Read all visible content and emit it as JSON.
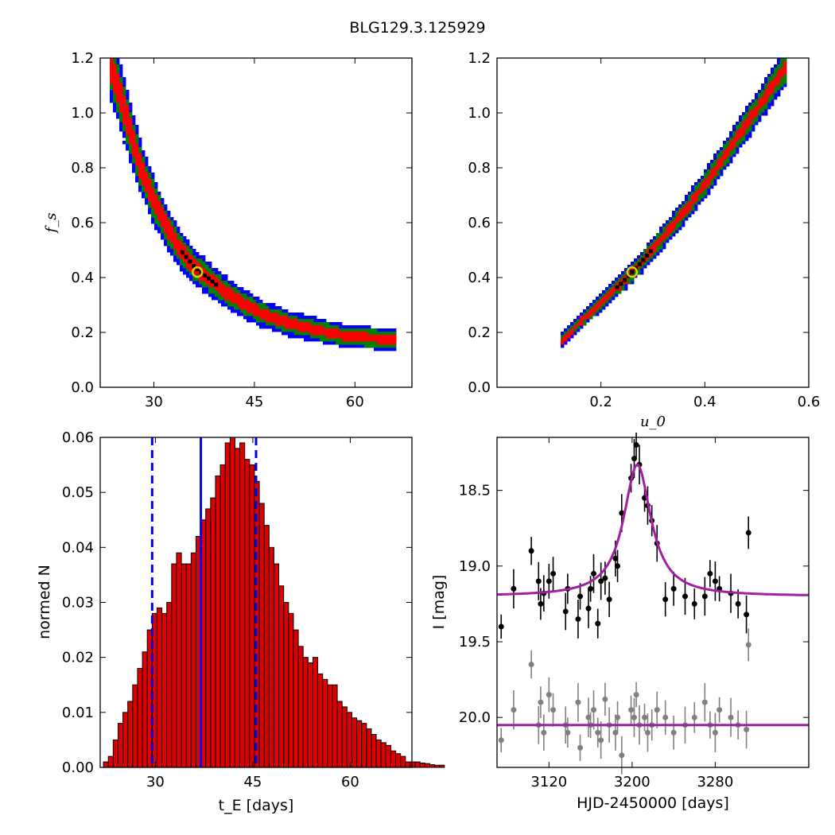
{
  "title": "BLG129.3.125929",
  "colors": {
    "outer": "#0000ff",
    "mid": "#008000",
    "inner": "#ff0000",
    "core": "#000000",
    "model": "#a020a0",
    "data_main": "#000000",
    "data_ref": "#808080",
    "best_marker": "#d4d400",
    "hist_fill": "#dd0000",
    "vline": "#0000ee"
  },
  "chart_data": [
    {
      "panel": "top-left",
      "type": "heatmap",
      "xlabel": "",
      "ylabel": "f_s",
      "xlim": [
        22,
        68.5
      ],
      "ylim": [
        0,
        1.2
      ],
      "xticks": [
        30,
        45,
        60
      ],
      "yticks": [
        "0.0",
        "0.2",
        "0.4",
        "0.6",
        "0.8",
        "1.0",
        "1.2"
      ],
      "description": "confidence region of f_s vs t_E (nested contours)",
      "ridge": [
        [
          23.5,
          1.18
        ],
        [
          25,
          1.06
        ],
        [
          26.5,
          0.93
        ],
        [
          28,
          0.8
        ],
        [
          30,
          0.68
        ],
        [
          32,
          0.58
        ],
        [
          34,
          0.5
        ],
        [
          36,
          0.44
        ],
        [
          38,
          0.4
        ],
        [
          40,
          0.36
        ],
        [
          43,
          0.31
        ],
        [
          46,
          0.27
        ],
        [
          50,
          0.235
        ],
        [
          54,
          0.21
        ],
        [
          58,
          0.19
        ],
        [
          62,
          0.18
        ],
        [
          66,
          0.175
        ]
      ],
      "best_fit": {
        "x": 36.5,
        "y": 0.42
      }
    },
    {
      "panel": "top-right",
      "type": "heatmap",
      "xlabel": "u_0",
      "ylabel": "",
      "xlim": [
        0.0,
        0.6
      ],
      "ylim": [
        0,
        1.2
      ],
      "xticks": [
        "0.2",
        "0.4",
        "0.6"
      ],
      "yticks": [
        "0.0",
        "0.2",
        "0.4",
        "0.6",
        "0.8",
        "1.0",
        "1.2"
      ],
      "description": "confidence region of f_s vs u_0 (nested contours)",
      "ridge": [
        [
          0.12,
          0.16
        ],
        [
          0.16,
          0.24
        ],
        [
          0.2,
          0.31
        ],
        [
          0.24,
          0.38
        ],
        [
          0.28,
          0.46
        ],
        [
          0.32,
          0.55
        ],
        [
          0.36,
          0.64
        ],
        [
          0.4,
          0.74
        ],
        [
          0.44,
          0.85
        ],
        [
          0.48,
          0.96
        ],
        [
          0.52,
          1.07
        ],
        [
          0.56,
          1.18
        ]
      ],
      "best_fit": {
        "x": 0.26,
        "y": 0.42
      }
    },
    {
      "panel": "bottom-left",
      "type": "bar",
      "xlabel": "t_E  [days]",
      "ylabel": "normed N",
      "xlim": [
        21.5,
        69.5
      ],
      "ylim": [
        0,
        0.06
      ],
      "xticks": [
        30,
        45,
        60
      ],
      "yticks": [
        "0.00",
        "0.01",
        "0.02",
        "0.03",
        "0.04",
        "0.05",
        "0.06"
      ],
      "bin_start": 22.0,
      "bin_width": 0.75,
      "values": [
        0.001,
        0.002,
        0.005,
        0.008,
        0.01,
        0.012,
        0.015,
        0.018,
        0.021,
        0.025,
        0.028,
        0.029,
        0.028,
        0.03,
        0.037,
        0.039,
        0.037,
        0.037,
        0.039,
        0.042,
        0.045,
        0.047,
        0.049,
        0.053,
        0.055,
        0.059,
        0.06,
        0.058,
        0.059,
        0.056,
        0.055,
        0.052,
        0.048,
        0.044,
        0.04,
        0.037,
        0.033,
        0.03,
        0.028,
        0.025,
        0.022,
        0.02,
        0.019,
        0.02,
        0.017,
        0.016,
        0.015,
        0.015,
        0.012,
        0.011,
        0.01,
        0.009,
        0.0085,
        0.008,
        0.007,
        0.006,
        0.005,
        0.0045,
        0.004,
        0.003,
        0.0025,
        0.002,
        0.001,
        0.001,
        0.001,
        0.0008,
        0.0007,
        0.0005,
        0.0004,
        0.0004
      ],
      "vlines": [
        {
          "x": 37.0,
          "style": "solid"
        },
        {
          "x": 29.5,
          "style": "dashed"
        },
        {
          "x": 45.5,
          "style": "dashed"
        }
      ]
    },
    {
      "panel": "bottom-right",
      "type": "scatter",
      "xlabel": "HJD-2450000 [days]",
      "ylabel": "I [mag]",
      "xlim": [
        3070,
        3370
      ],
      "ylim": [
        20.33,
        18.15
      ],
      "y_inverted": true,
      "xticks": [
        3120,
        3200,
        3280
      ],
      "yticks": [
        "18.5",
        "19.0",
        "19.5",
        "20.0"
      ],
      "model": {
        "t0": 3205,
        "baseline": 19.2,
        "peak": 18.33,
        "tau": 16
      },
      "reference_baseline": 20.05,
      "series": [
        {
          "color": "black",
          "x": [
            3074,
            3086,
            3103,
            3110,
            3112,
            3115,
            3120,
            3124,
            3136,
            3138,
            3148,
            3150,
            3158,
            3160,
            3163,
            3167,
            3170,
            3174,
            3178,
            3184,
            3186,
            3190,
            3199,
            3202,
            3204,
            3207,
            3212,
            3215,
            3219,
            3224,
            3232,
            3240,
            3251,
            3260,
            3270,
            3275,
            3280,
            3284,
            3295,
            3302,
            3310,
            3312
          ],
          "y": [
            19.4,
            19.15,
            18.9,
            19.1,
            19.25,
            19.18,
            19.1,
            19.05,
            19.3,
            19.15,
            19.35,
            19.2,
            19.28,
            19.15,
            19.05,
            19.38,
            19.1,
            19.08,
            19.22,
            18.95,
            19.0,
            18.65,
            18.42,
            18.29,
            18.2,
            18.33,
            18.55,
            18.6,
            18.7,
            18.85,
            19.22,
            19.15,
            19.2,
            19.25,
            19.2,
            19.05,
            19.1,
            19.15,
            19.18,
            19.25,
            19.32,
            18.78
          ]
        },
        {
          "color": "gray",
          "x": [
            3074,
            3086,
            3103,
            3110,
            3112,
            3115,
            3120,
            3124,
            3136,
            3138,
            3148,
            3150,
            3158,
            3160,
            3163,
            3167,
            3170,
            3174,
            3178,
            3184,
            3186,
            3190,
            3199,
            3202,
            3204,
            3207,
            3212,
            3215,
            3219,
            3224,
            3232,
            3240,
            3251,
            3260,
            3270,
            3275,
            3280,
            3284,
            3295,
            3302,
            3310,
            3312
          ],
          "y": [
            20.15,
            19.95,
            19.65,
            20.05,
            19.9,
            20.1,
            19.85,
            19.95,
            20.05,
            20.1,
            19.9,
            20.2,
            20.0,
            20.05,
            19.95,
            20.1,
            20.15,
            19.88,
            20.05,
            20.1,
            20.0,
            20.25,
            19.95,
            20.0,
            19.85,
            20.05,
            20.0,
            20.1,
            20.05,
            19.95,
            20.0,
            20.1,
            20.05,
            20.0,
            19.9,
            20.05,
            20.1,
            19.95,
            20.0,
            20.05,
            20.08,
            19.52
          ]
        }
      ]
    }
  ]
}
